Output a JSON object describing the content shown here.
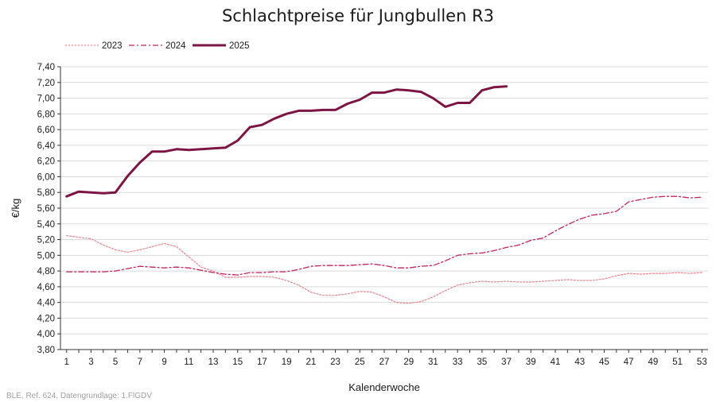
{
  "chart_data": {
    "type": "line",
    "title": "Schlachtpreise für Jungbullen R3",
    "xlabel": "Kalenderwoche",
    "ylabel": "€/kg",
    "xlim": [
      1,
      53
    ],
    "ylim": [
      3.8,
      7.4
    ],
    "y_ticks": [
      "3,80",
      "4,00",
      "4,20",
      "4,40",
      "4,60",
      "4,80",
      "5,00",
      "5,20",
      "5,40",
      "5,60",
      "5,80",
      "6,00",
      "6,20",
      "6,40",
      "6,60",
      "6,80",
      "7,00",
      "7,20",
      "7,40"
    ],
    "x_ticks": [
      "1",
      "3",
      "5",
      "7",
      "9",
      "11",
      "13",
      "15",
      "17",
      "19",
      "21",
      "23",
      "25",
      "27",
      "29",
      "31",
      "33",
      "35",
      "37",
      "39",
      "41",
      "43",
      "45",
      "47",
      "49",
      "51",
      "53"
    ],
    "grid": "horizontal",
    "legend_position": "top-left",
    "series": [
      {
        "name": "2023",
        "color": "#e8828c",
        "style": "dotted",
        "values": [
          5.25,
          5.23,
          5.21,
          5.13,
          5.07,
          5.04,
          5.07,
          5.11,
          5.15,
          5.11,
          4.98,
          4.85,
          4.8,
          4.72,
          4.72,
          4.73,
          4.73,
          4.72,
          4.68,
          4.62,
          4.53,
          4.49,
          4.49,
          4.51,
          4.54,
          4.53,
          4.47,
          4.4,
          4.39,
          4.41,
          4.47,
          4.55,
          4.62,
          4.65,
          4.67,
          4.66,
          4.67,
          4.66,
          4.66,
          4.67,
          4.68,
          4.69,
          4.68,
          4.68,
          4.7,
          4.74,
          4.77,
          4.76,
          4.77,
          4.77,
          4.78,
          4.77,
          4.78
        ]
      },
      {
        "name": "2024",
        "color": "#c2235f",
        "style": "dashdot",
        "values": [
          4.79,
          4.79,
          4.79,
          4.79,
          4.8,
          4.83,
          4.86,
          4.85,
          4.84,
          4.85,
          4.84,
          4.81,
          4.78,
          4.76,
          4.75,
          4.78,
          4.78,
          4.79,
          4.79,
          4.82,
          4.86,
          4.87,
          4.87,
          4.87,
          4.88,
          4.89,
          4.87,
          4.84,
          4.84,
          4.86,
          4.87,
          4.93,
          5.0,
          5.02,
          5.03,
          5.06,
          5.1,
          5.13,
          5.19,
          5.22,
          5.31,
          5.39,
          5.46,
          5.51,
          5.53,
          5.56,
          5.68,
          5.71,
          5.74,
          5.75,
          5.75,
          5.73,
          5.74
        ]
      },
      {
        "name": "2025",
        "color": "#7c1543",
        "style": "solid",
        "values": [
          5.75,
          5.81,
          5.8,
          5.79,
          5.8,
          6.01,
          6.18,
          6.32,
          6.32,
          6.35,
          6.34,
          6.35,
          6.36,
          6.37,
          6.46,
          6.63,
          6.66,
          6.74,
          6.8,
          6.84,
          6.84,
          6.85,
          6.85,
          6.93,
          6.98,
          7.07,
          7.07,
          7.11,
          7.1,
          7.08,
          7.0,
          6.89,
          6.94,
          6.94,
          7.1,
          7.14,
          7.15
        ]
      }
    ]
  },
  "source_note": "BLE, Ref. 624, Datengrundlage: 1.FlGDV"
}
